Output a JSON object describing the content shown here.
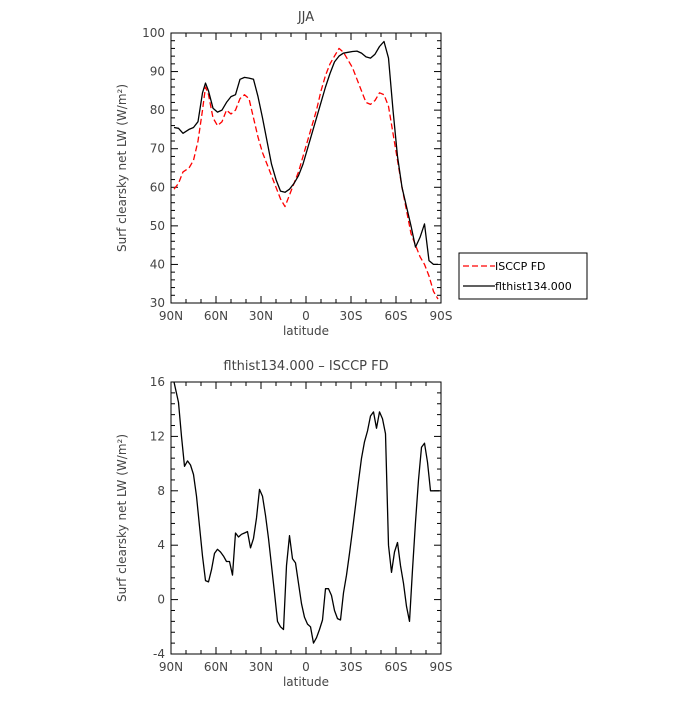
{
  "chart_data": [
    {
      "type": "line",
      "title": "JJA",
      "xlabel": "latitude",
      "ylabel": "Surf clearsky net LW (W/m²)",
      "xlim": [
        -90,
        90
      ],
      "ylim": [
        30,
        100
      ],
      "x_ticks": [
        -90,
        -60,
        -30,
        0,
        30,
        60,
        90
      ],
      "x_tick_labels": [
        "90N",
        "60N",
        "30N",
        "0",
        "30S",
        "60S",
        "90S"
      ],
      "y_ticks": [
        30,
        40,
        50,
        60,
        70,
        80,
        90,
        100
      ],
      "legend": "right",
      "series": [
        {
          "name": "ISCCP FD",
          "color": "#ff0000",
          "dash": "dashed",
          "x": [
            -88,
            -85,
            -82,
            -78,
            -75,
            -72,
            -69,
            -67,
            -65,
            -62,
            -59,
            -56,
            -53,
            -50,
            -47,
            -44,
            -41,
            -38,
            -35,
            -32,
            -29,
            -26,
            -23,
            -20,
            -17,
            -14,
            -11,
            -8,
            -5,
            -2,
            1,
            4,
            7,
            10,
            13,
            16,
            19,
            22,
            25,
            28,
            31,
            34,
            37,
            40,
            43,
            46,
            49,
            52,
            55,
            58,
            61,
            64,
            67,
            70,
            73,
            76,
            79,
            82,
            85,
            88
          ],
          "values": [
            59.5,
            61,
            64,
            65,
            67,
            72,
            80,
            86,
            84,
            78,
            76,
            77,
            80,
            79,
            80,
            83,
            84,
            83,
            78,
            73,
            69,
            66,
            63,
            60,
            57,
            55,
            58,
            61,
            64,
            68,
            72,
            76,
            80,
            85,
            89,
            92,
            94,
            96,
            95,
            93,
            91,
            88,
            85,
            82,
            81.5,
            82.5,
            84.5,
            84,
            81,
            74,
            67,
            60,
            54,
            48,
            45,
            42,
            40,
            37,
            33,
            31
          ]
        },
        {
          "name": "flthist134.000",
          "color": "#000000",
          "dash": "solid",
          "x": [
            -88,
            -85,
            -82,
            -78,
            -75,
            -72,
            -69,
            -67,
            -65,
            -62,
            -59,
            -56,
            -53,
            -50,
            -47,
            -44,
            -41,
            -38,
            -35,
            -32,
            -29,
            -26,
            -23,
            -20,
            -17,
            -14,
            -11,
            -8,
            -5,
            -2,
            1,
            4,
            7,
            10,
            13,
            16,
            19,
            22,
            25,
            28,
            31,
            34,
            37,
            40,
            43,
            46,
            49,
            52,
            55,
            58,
            61,
            64,
            67,
            70,
            73,
            76,
            79,
            82,
            85,
            88
          ],
          "values": [
            75.5,
            75.3,
            74,
            75,
            75.5,
            77,
            84.5,
            87,
            85,
            80.5,
            79.5,
            80,
            82,
            83.5,
            84,
            88,
            88.5,
            88.3,
            88,
            83.5,
            78,
            72,
            66,
            62,
            59,
            58.7,
            59.5,
            61,
            63,
            66,
            70,
            74,
            78,
            82,
            86,
            89.5,
            92.5,
            94,
            94.8,
            95,
            95.2,
            95.3,
            94.8,
            93.8,
            93.5,
            94.5,
            96.5,
            97.8,
            93.5,
            80,
            68,
            60,
            55,
            50,
            44.5,
            47,
            50.5,
            41,
            40,
            40
          ]
        }
      ]
    },
    {
      "type": "line",
      "title": "flthist134.000 – ISCCP FD",
      "xlabel": "latitude",
      "ylabel": "Surf clearsky net LW (W/m²)",
      "xlim": [
        -90,
        90
      ],
      "ylim": [
        -4,
        16
      ],
      "x_ticks": [
        -90,
        -60,
        -30,
        0,
        30,
        60,
        90
      ],
      "x_tick_labels": [
        "90N",
        "60N",
        "30N",
        "0",
        "30S",
        "60S",
        "90S"
      ],
      "y_ticks": [
        -4,
        0,
        4,
        8,
        12,
        16
      ],
      "series": [
        {
          "color": "#000000",
          "dash": "solid",
          "x": [
            -88,
            -85,
            -83,
            -81,
            -79,
            -77,
            -75,
            -73,
            -71,
            -69,
            -67,
            -65,
            -63,
            -61,
            -59,
            -57,
            -55,
            -53,
            -51,
            -49,
            -47,
            -45,
            -43,
            -41,
            -39,
            -37,
            -35,
            -33,
            -31,
            -29,
            -27,
            -25,
            -23,
            -21,
            -19,
            -17,
            -15,
            -13,
            -11,
            -9,
            -7,
            -5,
            -3,
            -1,
            1,
            3,
            5,
            7,
            9,
            11,
            13,
            15,
            17,
            19,
            21,
            23,
            25,
            27,
            29,
            31,
            33,
            35,
            37,
            39,
            41,
            43,
            45,
            47,
            49,
            51,
            53,
            55,
            57,
            59,
            61,
            63,
            65,
            67,
            69,
            71,
            73,
            75,
            77,
            79,
            81,
            83,
            85,
            87,
            89
          ],
          "values": [
            16,
            14.5,
            12,
            9.8,
            10.2,
            9.9,
            9.2,
            7.6,
            5.4,
            3.2,
            1.4,
            1.3,
            2.2,
            3.4,
            3.7,
            3.5,
            3.2,
            2.8,
            2.8,
            1.8,
            4.9,
            4.6,
            4.8,
            4.9,
            5,
            3.8,
            4.5,
            6,
            8.1,
            7.6,
            6.2,
            4.5,
            2.5,
            0.5,
            -1.6,
            -2,
            -2.2,
            2.5,
            4.7,
            3,
            2.7,
            1.2,
            -0.3,
            -1.3,
            -1.8,
            -2,
            -3.2,
            -2.8,
            -2.2,
            -1.5,
            0.8,
            0.8,
            0.3,
            -0.8,
            -1.4,
            -1.5,
            0.5,
            1.8,
            3.4,
            5.1,
            6.9,
            8.7,
            10.4,
            11.6,
            12.4,
            13.5,
            13.8,
            12.6,
            13.8,
            13.3,
            12.2,
            4,
            2,
            3.5,
            4.2,
            2.5,
            1.2,
            -0.5,
            -1.6,
            2.2,
            5.7,
            8.8,
            11.2,
            11.5,
            10.1,
            8,
            8,
            8,
            8
          ]
        }
      ]
    }
  ]
}
